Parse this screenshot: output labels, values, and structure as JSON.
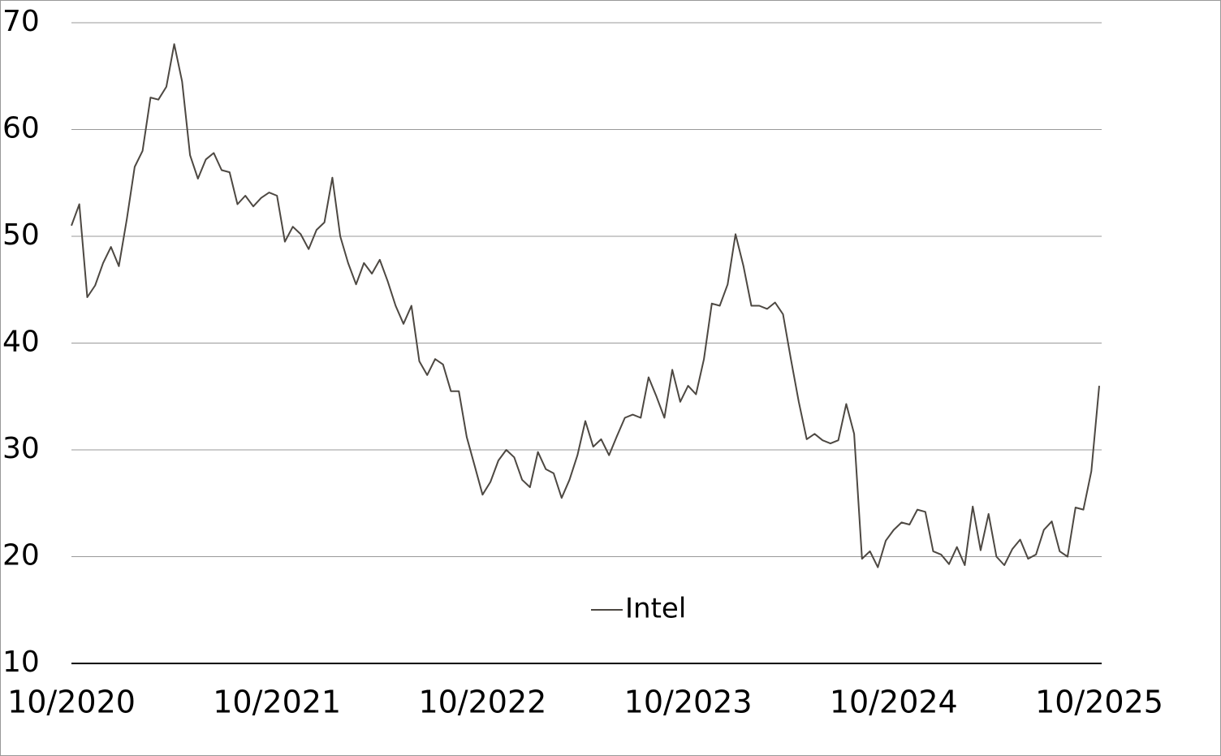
{
  "chart_data": {
    "type": "line",
    "categories": [
      "10/2020",
      null,
      null,
      null,
      null,
      null,
      null,
      null,
      null,
      null,
      null,
      null,
      null,
      null,
      null,
      null,
      null,
      null,
      null,
      null,
      null,
      null,
      null,
      null,
      null,
      null,
      "10/2021",
      null,
      null,
      null,
      null,
      null,
      null,
      null,
      null,
      null,
      null,
      null,
      null,
      null,
      null,
      null,
      null,
      null,
      null,
      null,
      null,
      null,
      null,
      null,
      null,
      null,
      "10/2022",
      null,
      null,
      null,
      null,
      null,
      null,
      null,
      null,
      null,
      null,
      null,
      null,
      null,
      null,
      null,
      null,
      null,
      null,
      null,
      null,
      null,
      null,
      null,
      null,
      null,
      "10/2023",
      null,
      null,
      null,
      null,
      null,
      null,
      null,
      null,
      null,
      null,
      null,
      null,
      null,
      null,
      null,
      null,
      null,
      null,
      null,
      null,
      null,
      null,
      null,
      null,
      null,
      "10/2024",
      null,
      null,
      null,
      null,
      null,
      null,
      null,
      null,
      null,
      null,
      null,
      null,
      null,
      null,
      null,
      null,
      null,
      null,
      null,
      null,
      null,
      null,
      null,
      null,
      null,
      "10/2025"
    ],
    "series": [
      {
        "name": "Intel",
        "color": "#4d4842",
        "values": [
          51,
          53,
          44.3,
          45.4,
          47.5,
          49,
          47.2,
          51.6,
          56.5,
          58,
          63,
          62.8,
          64,
          68,
          64.5,
          57.6,
          55.4,
          57.2,
          57.8,
          56.2,
          56,
          53,
          53.8,
          52.8,
          53.6,
          54.1,
          53.8,
          49.5,
          50.9,
          50.2,
          48.8,
          50.6,
          51.3,
          55.5,
          50,
          47.5,
          45.5,
          47.5,
          46.5,
          47.8,
          45.8,
          43.5,
          41.8,
          43.5,
          38.3,
          37,
          38.5,
          38,
          35.5,
          35.5,
          31.2,
          28.5,
          25.8,
          27,
          29,
          30,
          29.3,
          27.2,
          26.5,
          29.8,
          28.2,
          27.8,
          25.5,
          27.2,
          29.5,
          32.7,
          30.3,
          31,
          29.5,
          31.3,
          33,
          33.3,
          33,
          36.8,
          35,
          33,
          37.5,
          34.5,
          36,
          35.2,
          38.5,
          43.7,
          43.5,
          45.5,
          50.2,
          47.2,
          43.5,
          43.5,
          43.2,
          43.8,
          42.7,
          38.5,
          34.5,
          31,
          31.5,
          30.9,
          30.6,
          30.9,
          34.3,
          31.5,
          19.8,
          20.5,
          19,
          21.5,
          22.5,
          23.2,
          23,
          24.4,
          24.2,
          20.5,
          20.2,
          19.3,
          20.9,
          19.2,
          24.7,
          20.6,
          24,
          20,
          19.2,
          20.7,
          21.6,
          19.8,
          20.2,
          22.5,
          23.3,
          20.5,
          20,
          24.6,
          24.4,
          28,
          36
        ]
      }
    ],
    "ylim": [
      10,
      70
    ],
    "yticks": [
      10,
      20,
      30,
      40,
      50,
      60,
      70
    ],
    "grid": true,
    "legend": "bottom"
  }
}
